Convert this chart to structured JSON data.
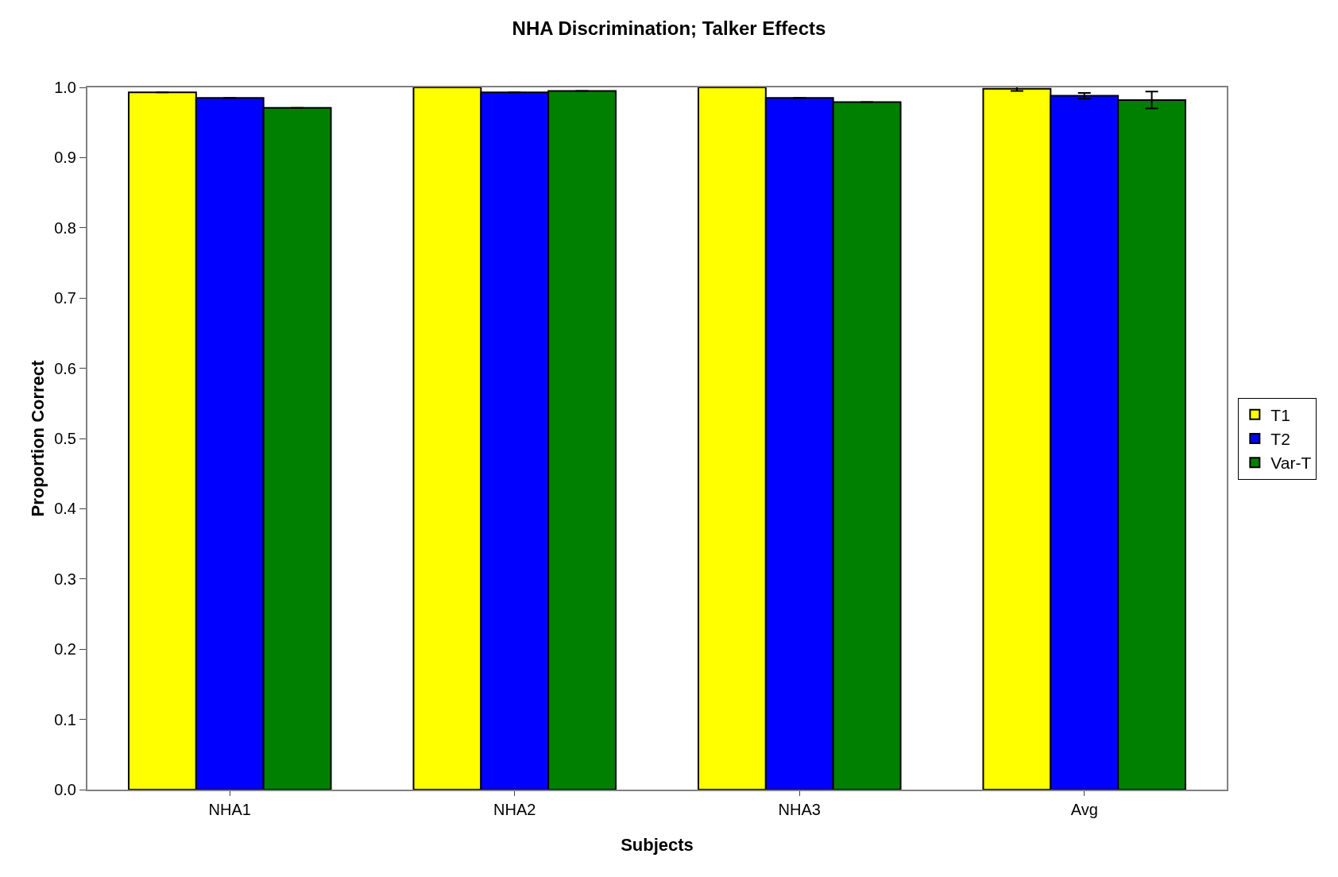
{
  "chart_data": {
    "type": "bar",
    "title": "NHA Discrimination; Talker Effects",
    "xlabel": "Subjects",
    "ylabel": "Proportion Correct",
    "categories": [
      "NHA1",
      "NHA2",
      "NHA3",
      "Avg"
    ],
    "series": [
      {
        "name": "T1",
        "color": "#ffff00",
        "values": [
          0.993,
          1.0,
          1.0,
          0.998
        ],
        "errors": [
          null,
          null,
          null,
          0.003
        ]
      },
      {
        "name": "T2",
        "color": "#0000ff",
        "values": [
          0.985,
          0.993,
          0.985,
          0.988
        ],
        "errors": [
          null,
          null,
          null,
          0.004
        ]
      },
      {
        "name": "Var-T",
        "color": "#008000",
        "values": [
          0.971,
          0.995,
          0.979,
          0.982
        ],
        "errors": [
          null,
          null,
          null,
          0.012
        ]
      }
    ],
    "ylim": [
      0,
      1.0
    ],
    "yticks": [
      {
        "value": 0,
        "label": "0.0"
      },
      0.1,
      0.2,
      0.3,
      0.4,
      0.5,
      0.6,
      0.7,
      0.8,
      0.9,
      {
        "value": 1,
        "label": "1.0"
      }
    ],
    "grid": false,
    "legend": "right"
  }
}
